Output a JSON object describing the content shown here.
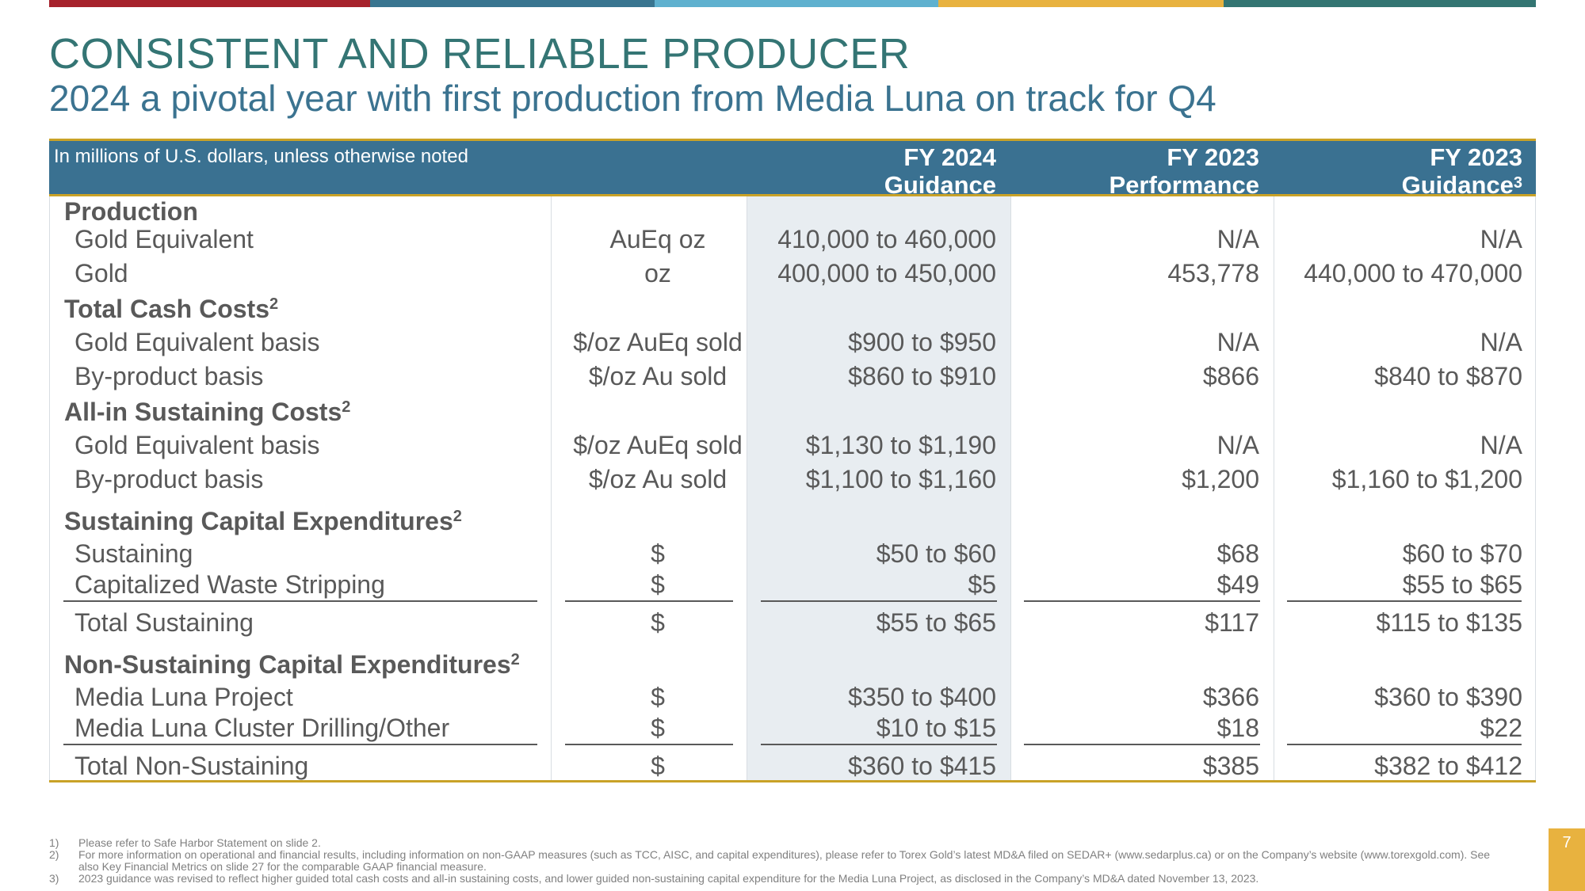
{
  "brand": {
    "bar_colors": [
      "#a6222c",
      "#397590",
      "#5fb1cf",
      "#e8b23f",
      "#337572"
    ],
    "title_color": "#347574",
    "subtitle_color": "#3b7390",
    "header_bg": "#3a7191",
    "gold_line": "#c9a227"
  },
  "title": "CONSISTENT AND RELIABLE PRODUCER",
  "subtitle": "2024 a pivotal year with first production from Media Luna on track for Q4",
  "table": {
    "note": "In millions of U.S. dollars, unless otherwise noted",
    "columns": [
      {
        "line1": "FY 2024",
        "line2": "Guidance",
        "sup": ""
      },
      {
        "line1": "FY 2023",
        "line2": "Performance",
        "sup": ""
      },
      {
        "line1": "FY 2023",
        "line2": "Guidance",
        "sup": "3"
      }
    ],
    "sections": {
      "production": {
        "label": "Production",
        "sup": ""
      },
      "tcc": {
        "label": "Total Cash Costs",
        "sup": "2"
      },
      "aisc": {
        "label": "All-in Sustaining Costs",
        "sup": "2"
      },
      "scapex": {
        "label": "Sustaining Capital Expenditures",
        "sup": "2"
      },
      "nscapex": {
        "label": "Non-Sustaining Capital Expenditures",
        "sup": "2"
      }
    },
    "rows": {
      "gold_eq": {
        "label": "Gold Equivalent",
        "unit": "AuEq oz",
        "c1": "410,000 to 460,000",
        "c2": "N/A",
        "c3": "N/A"
      },
      "gold": {
        "label": "Gold",
        "unit": "oz",
        "c1": "400,000 to 450,000",
        "c2": "453,778",
        "c3": "440,000 to 470,000"
      },
      "tcc_eq": {
        "label": "Gold Equivalent basis",
        "unit": "$/oz AuEq sold",
        "c1": "$900 to $950",
        "c2": "N/A",
        "c3": "N/A"
      },
      "tcc_by": {
        "label": "By-product basis",
        "unit": "$/oz Au sold",
        "c1": "$860 to $910",
        "c2": "$866",
        "c3": "$840 to $870"
      },
      "aisc_eq": {
        "label": "Gold Equivalent basis",
        "unit": "$/oz AuEq sold",
        "c1": "$1,130 to $1,190",
        "c2": "N/A",
        "c3": "N/A"
      },
      "aisc_by": {
        "label": "By-product basis",
        "unit": "$/oz Au sold",
        "c1": "$1,100 to $1,160",
        "c2": "$1,200",
        "c3": "$1,160 to $1,200"
      },
      "sustaining": {
        "label": "Sustaining",
        "unit": "$",
        "c1": "$50 to $60",
        "c2": "$68",
        "c3": "$60 to $70"
      },
      "waste": {
        "label": "Capitalized Waste Stripping",
        "unit": "$",
        "c1": "$5",
        "c2": "$49",
        "c3": "$55 to $65"
      },
      "total_sust": {
        "label": "Total Sustaining",
        "unit": "$",
        "c1": "$55 to $65",
        "c2": "$117",
        "c3": "$115 to $135"
      },
      "ml_project": {
        "label": "Media Luna Project",
        "unit": "$",
        "c1": "$350 to $400",
        "c2": "$366",
        "c3": "$360 to $390"
      },
      "ml_drilling": {
        "label": "Media Luna Cluster Drilling/Other",
        "unit": "$",
        "c1": "$10 to $15",
        "c2": "$18",
        "c3": "$22"
      },
      "total_nonsust": {
        "label": "Total Non-Sustaining",
        "unit": "$",
        "c1": "$360 to $415",
        "c2": "$385",
        "c3": "$382 to $412"
      }
    }
  },
  "footnotes": [
    {
      "n": "1)",
      "text": "Please refer to Safe Harbor Statement on slide 2."
    },
    {
      "n": "2)",
      "text": "For more information on operational and financial results, including information on non-GAAP measures (such as TCC, AISC, and capital expenditures), please refer to Torex Gold’s latest MD&A filed on SEDAR+ (www.sedarplus.ca) or on the Company’s website (www.torexgold.com). See also Key Financial Metrics on slide 27 for the comparable GAAP financial measure."
    },
    {
      "n": "3)",
      "text": "2023 guidance was revised to reflect higher guided total cash costs and all-in sustaining costs, and lower guided non-sustaining capital expenditure for the Media Luna Project, as disclosed in the Company’s MD&A dated November 13, 2023."
    }
  ],
  "page_number": "7"
}
